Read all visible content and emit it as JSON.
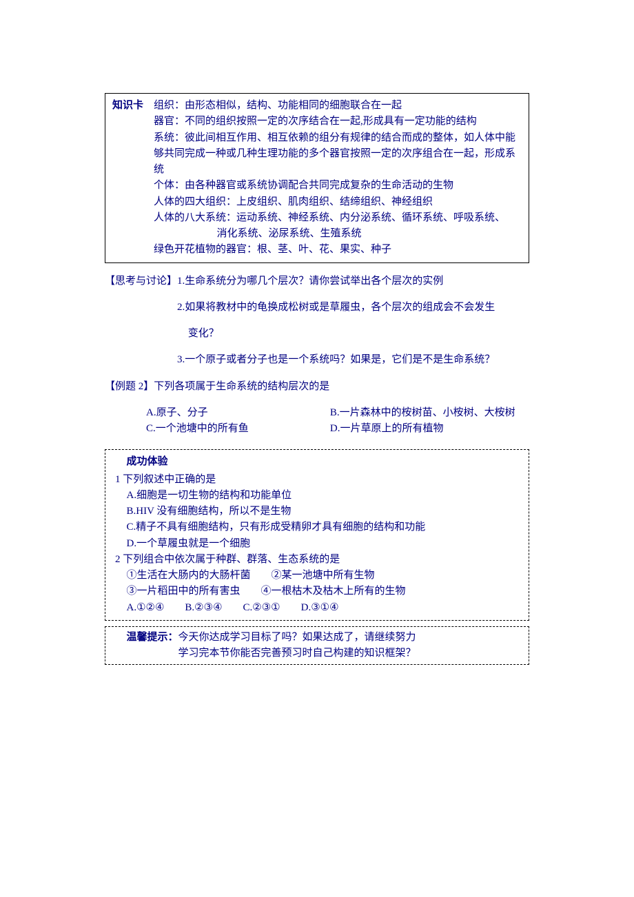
{
  "knowledge_card": {
    "label": "知识卡",
    "lines": [
      "组织：由形态相似，结构、功能相同的细胞联合在一起",
      "器官：不同的组织按照一定的次序结合在一起,形成具有一定功能的结构",
      "系统：彼此间相互作用、相互依赖的组分有规律的结合而成的整体，如人体中能够共同完成一种或几种生理功能的多个器官按照一定的次序组合在一起，形成系统",
      "个体：由各种器官或系统协调配合共同完成复杂的生命活动的生物",
      "人体的四大组织：上皮组织、肌肉组织、结缔组织、神经组织",
      "人体的八大系统：运动系统、神经系统、内分泌系统、循环系统、呼吸系统、",
      "消化系统、泌尿系统、生殖系统",
      "绿色开花植物的器官：根、茎、叶、花、果实、种子"
    ]
  },
  "discussion": {
    "label": "【思考与讨论】",
    "items": [
      "1.生命系统分为哪几个层次？请你尝试举出各个层次的实例",
      "2.如果将教材中的龟换成松树或是草履虫，各个层次的组成会不会发生",
      "变化？",
      "3.一个原子或者分子也是一个系统吗？如果是，它们是不是生命系统？"
    ]
  },
  "example2": {
    "label": "【例题 2】",
    "stem": "下列各项属于生命系统的结构层次的是",
    "A": "A.原子、分子",
    "B": "B.一片森林中的桉树苗、小桉树、大桉树",
    "C": "C.一个池塘中的所有鱼",
    "D": "D.一片草原上的所有植物"
  },
  "success": {
    "title": "成功体验",
    "q1": {
      "stem": "1 下列叙述中正确的是",
      "A": "A.细胞是一切生物的结构和功能单位",
      "B": "B.HIV 没有细胞结构，所以不是生物",
      "C": "C.精子不具有细胞结构，只有形成受精卵才具有细胞的结构和功能",
      "D": "D.一个草履虫就是一个细胞"
    },
    "q2": {
      "stem": "2 下列组合中依次属于种群、群落、生态系统的是",
      "line1": "①生活在大肠内的大肠杆菌　　②某一池塘中所有生物",
      "line2": "③一片稻田中的所有害虫　　④一根枯木及枯木上所有的生物",
      "opts": "A.①②④　　B.②③④　　C.②③①　　D.③①④"
    }
  },
  "tip": {
    "label": "温馨提示：",
    "line1": "今天你达成学习目标了吗？如果达成了，请继续努力",
    "line2": "学习完本节你能否完善预习时自己构建的知识框架？"
  }
}
